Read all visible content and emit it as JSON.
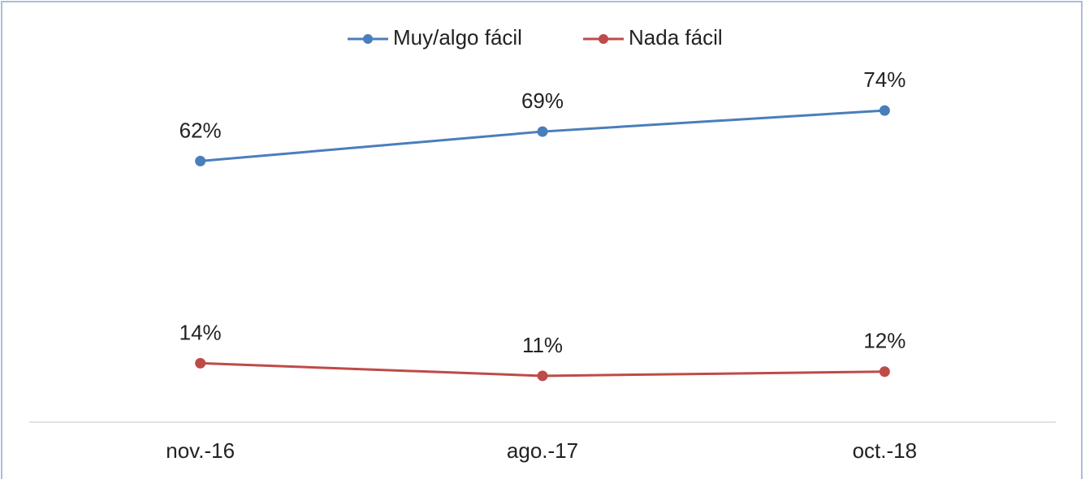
{
  "chart_data": {
    "type": "line",
    "categories": [
      "nov.-16",
      "ago.-17",
      "oct.-18"
    ],
    "series": [
      {
        "name": "Muy/algo fácil",
        "color": "#4a7ebb",
        "values": [
          62,
          69,
          74
        ],
        "value_labels": [
          "62%",
          "69%",
          "74%"
        ]
      },
      {
        "name": "Nada fácil",
        "color": "#be4b48",
        "values": [
          14,
          11,
          12
        ],
        "value_labels": [
          "14%",
          "11%",
          "12%"
        ]
      }
    ],
    "ylim": [
      0,
      80
    ],
    "legend": "top"
  }
}
